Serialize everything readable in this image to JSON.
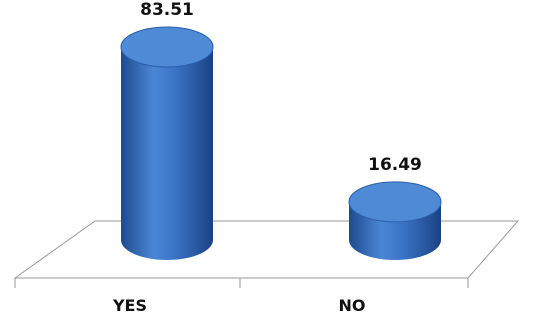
{
  "chart_data": {
    "type": "bar",
    "style": "3d-cylinder",
    "categories": [
      "YES",
      "NO"
    ],
    "values": [
      83.51,
      16.49
    ],
    "value_labels": [
      "83.51",
      "16.49"
    ],
    "ylim": [
      0,
      100
    ],
    "grid": false,
    "legend": "none",
    "colors": {
      "bar": "#3a72c4",
      "bar_dark": "#1f4f95",
      "bar_top": "#4f8ad6",
      "floor_line": "#9a9a9a"
    }
  }
}
